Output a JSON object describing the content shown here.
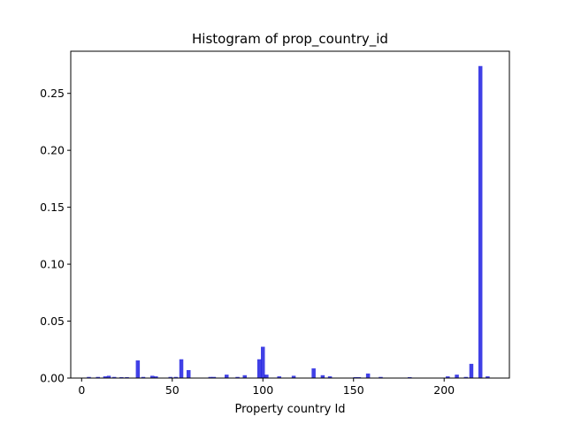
{
  "chart_data": {
    "type": "bar",
    "title": "Histogram of prop_country_id",
    "xlabel": "Property country Id",
    "ylabel": "",
    "xlim": [
      -6,
      236
    ],
    "ylim": [
      0,
      0.287
    ],
    "xticks": [
      0,
      50,
      100,
      150,
      200
    ],
    "xtick_labels": [
      "0",
      "50",
      "100",
      "150",
      "200"
    ],
    "yticks": [
      0.0,
      0.05,
      0.1,
      0.15,
      0.2,
      0.25
    ],
    "ytick_labels": [
      "0.00",
      "0.05",
      "0.10",
      "0.15",
      "0.20",
      "0.25"
    ],
    "bin_width": 2.2,
    "bar_color": "#0000dd",
    "bar_opacity": 0.75,
    "bins": [
      {
        "x": 4,
        "value": 0.001
      },
      {
        "x": 9,
        "value": 0.001
      },
      {
        "x": 13,
        "value": 0.0015
      },
      {
        "x": 15,
        "value": 0.002
      },
      {
        "x": 18,
        "value": 0.001
      },
      {
        "x": 22,
        "value": 0.0008
      },
      {
        "x": 25,
        "value": 0.0008
      },
      {
        "x": 31,
        "value": 0.0155
      },
      {
        "x": 34,
        "value": 0.001
      },
      {
        "x": 39,
        "value": 0.002
      },
      {
        "x": 41,
        "value": 0.0015
      },
      {
        "x": 49,
        "value": 0.001
      },
      {
        "x": 52,
        "value": 0.001
      },
      {
        "x": 55,
        "value": 0.0165
      },
      {
        "x": 59,
        "value": 0.007
      },
      {
        "x": 71,
        "value": 0.001
      },
      {
        "x": 73,
        "value": 0.001
      },
      {
        "x": 80,
        "value": 0.003
      },
      {
        "x": 86,
        "value": 0.001
      },
      {
        "x": 90,
        "value": 0.0025
      },
      {
        "x": 98,
        "value": 0.0165
      },
      {
        "x": 100,
        "value": 0.0275
      },
      {
        "x": 102,
        "value": 0.003
      },
      {
        "x": 109,
        "value": 0.0015
      },
      {
        "x": 117,
        "value": 0.002
      },
      {
        "x": 128,
        "value": 0.0085
      },
      {
        "x": 133,
        "value": 0.0025
      },
      {
        "x": 137,
        "value": 0.0015
      },
      {
        "x": 151,
        "value": 0.0008
      },
      {
        "x": 153,
        "value": 0.0008
      },
      {
        "x": 158,
        "value": 0.004
      },
      {
        "x": 165,
        "value": 0.001
      },
      {
        "x": 181,
        "value": 0.0008
      },
      {
        "x": 202,
        "value": 0.0015
      },
      {
        "x": 207,
        "value": 0.003
      },
      {
        "x": 212,
        "value": 0.001
      },
      {
        "x": 215,
        "value": 0.0125
      },
      {
        "x": 220,
        "value": 0.274
      },
      {
        "x": 224,
        "value": 0.0015
      }
    ]
  }
}
